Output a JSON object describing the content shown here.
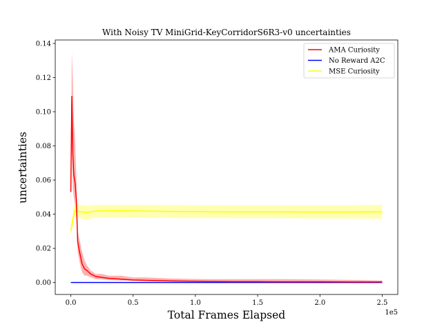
{
  "chart_data": {
    "type": "line",
    "title": "With Noisy TV MiniGrid-KeyCorridorS6R3-v0 uncertainties",
    "xlabel": "Total Frames Elapsed",
    "ylabel": "uncertainties",
    "x_offset_text": "1e5",
    "xlim": [
      -12500,
      262500
    ],
    "ylim": [
      -0.007,
      0.142
    ],
    "x_ticks": [
      0,
      50000,
      100000,
      150000,
      200000,
      250000
    ],
    "x_tick_labels": [
      "0.0",
      "0.5",
      "1.0",
      "1.5",
      "2.0",
      "2.5"
    ],
    "y_ticks": [
      0,
      0.02,
      0.04,
      0.06,
      0.08,
      0.1,
      0.12,
      0.14
    ],
    "y_tick_labels": [
      "0.00",
      "0.02",
      "0.04",
      "0.06",
      "0.08",
      "0.10",
      "0.12",
      "0.14"
    ],
    "grid": false,
    "legend_position": "top-right",
    "series": [
      {
        "name": "AMA Curiosity",
        "color": "#ff0000",
        "band_color": "#ff0000",
        "band_opacity": 0.3,
        "x": [
          0,
          800,
          1600,
          2400,
          3500,
          4500,
          5500,
          7000,
          9000,
          11000,
          13000,
          16000,
          20000,
          25000,
          30000,
          40000,
          50000,
          60000,
          75000,
          90000,
          110000,
          130000,
          150000,
          170000,
          200000,
          230000,
          250000
        ],
        "y": [
          0.053,
          0.109,
          0.075,
          0.063,
          0.058,
          0.048,
          0.024,
          0.018,
          0.011,
          0.008,
          0.007,
          0.005,
          0.0035,
          0.003,
          0.0025,
          0.002,
          0.0015,
          0.0013,
          0.001,
          0.0008,
          0.0006,
          0.0005,
          0.0005,
          0.0004,
          0.0004,
          0.0003,
          0.0003
        ],
        "y_upper": [
          0.06,
          0.135,
          0.12,
          0.095,
          0.082,
          0.06,
          0.03,
          0.025,
          0.018,
          0.013,
          0.01,
          0.007,
          0.005,
          0.005,
          0.004,
          0.004,
          0.003,
          0.003,
          0.0025,
          0.0022,
          0.002,
          0.002,
          0.002,
          0.002,
          0.0018,
          0.0015,
          0.0012
        ],
        "y_lower": [
          0.045,
          0.085,
          0.055,
          0.05,
          0.045,
          0.038,
          0.018,
          0.012,
          0.006,
          0.004,
          0.004,
          0.003,
          0.002,
          0.0018,
          0.0015,
          0.0012,
          0.001,
          0.0008,
          0.0006,
          0.0005,
          0.0003,
          0.0002,
          0.0002,
          0.0001,
          0.0001,
          0.0001,
          0.0001
        ]
      },
      {
        "name": "No Reward A2C",
        "color": "#0000ff",
        "x": [
          0,
          250000
        ],
        "y": [
          0,
          0
        ]
      },
      {
        "name": "MSE Curiosity",
        "color": "#ffff00",
        "band_color": "#ffff00",
        "band_opacity": 0.3,
        "x": [
          0,
          1500,
          3000,
          5000,
          8000,
          12000,
          20000,
          30000,
          40000,
          60000,
          80000,
          100000,
          130000,
          160000,
          190000,
          220000,
          250000
        ],
        "y": [
          0.03,
          0.036,
          0.042,
          0.0418,
          0.0415,
          0.041,
          0.0418,
          0.042,
          0.042,
          0.0418,
          0.0416,
          0.0415,
          0.0414,
          0.0414,
          0.0413,
          0.0413,
          0.0414
        ],
        "y_upper": [
          0.034,
          0.04,
          0.046,
          0.046,
          0.0455,
          0.045,
          0.0455,
          0.0455,
          0.0455,
          0.0455,
          0.0454,
          0.0453,
          0.0452,
          0.0452,
          0.0452,
          0.0452,
          0.0455
        ],
        "y_lower": [
          0.027,
          0.033,
          0.038,
          0.038,
          0.0375,
          0.037,
          0.0378,
          0.038,
          0.038,
          0.038,
          0.0378,
          0.0377,
          0.0376,
          0.0376,
          0.0375,
          0.0375,
          0.0373
        ]
      }
    ]
  }
}
